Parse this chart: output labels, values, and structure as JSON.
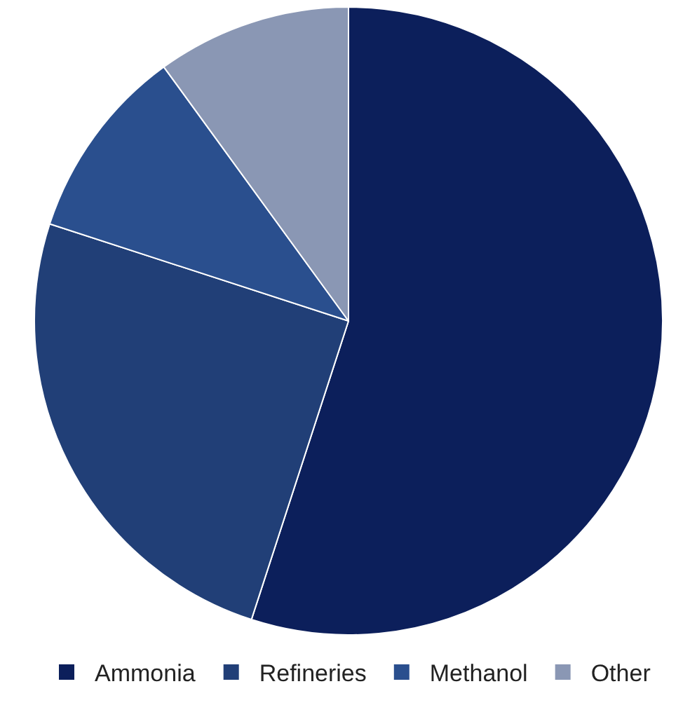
{
  "chart_data": {
    "type": "pie",
    "categories": [
      "Ammonia",
      "Refineries",
      "Methanol",
      "Other"
    ],
    "values": [
      55,
      25,
      10,
      10
    ],
    "colors": [
      "#0c1f5b",
      "#213f77",
      "#2a4f8e",
      "#8a97b4"
    ],
    "legend": "bottom"
  }
}
